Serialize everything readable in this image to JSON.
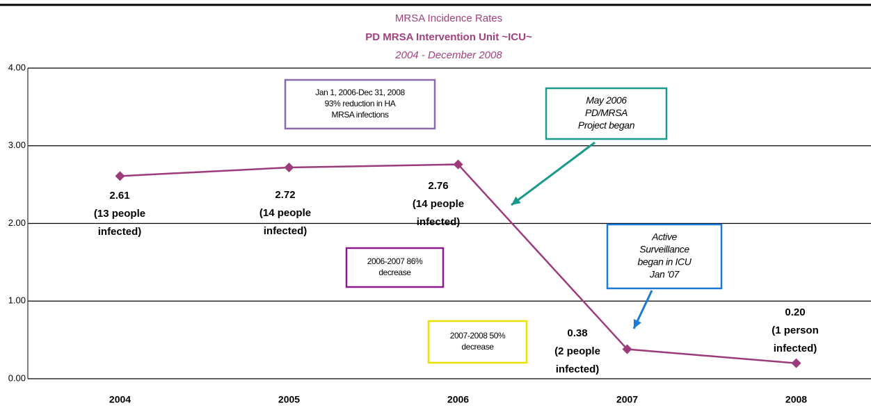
{
  "chart_data": {
    "type": "line",
    "title": "MRSA Incidence Rates",
    "subtitle": "PD MRSA Intervention Unit ~ICU~",
    "period": "2004 - December 2008",
    "categories": [
      "2004",
      "2005",
      "2006",
      "2007",
      "2008"
    ],
    "series": [
      {
        "name": "MRSA incidence rate",
        "color": "#9b3b7a",
        "values": [
          2.61,
          2.72,
          2.76,
          0.38,
          0.2
        ],
        "value_labels": [
          "2.61",
          "2.72",
          "2.76",
          "0.38",
          "0.20"
        ]
      }
    ],
    "point_notes": [
      [
        "(13 people",
        "infected)"
      ],
      [
        "(14 people",
        "infected)"
      ],
      [
        "(14 people",
        "infected)"
      ],
      [
        "(2 people",
        "infected)"
      ],
      [
        "(1 person",
        "infected)"
      ]
    ],
    "ylim": [
      0,
      4
    ],
    "yticks": [
      {
        "value": 0,
        "label": "0.00"
      },
      {
        "value": 1,
        "label": "1.00"
      },
      {
        "value": 2,
        "label": "2.00"
      },
      {
        "value": 3,
        "label": "3.00"
      },
      {
        "value": 4,
        "label": "4.00"
      }
    ],
    "grid": true,
    "annotations": [
      {
        "lines": [
          "Jan 1, 2006-Dec 31, 2008",
          "93% reduction in HA",
          "MRSA infections"
        ],
        "color": "#8a6aa8"
      },
      {
        "lines": [
          "May 2006",
          "PD/MRSA",
          "Project began"
        ],
        "color": "#1a9a8a"
      },
      {
        "lines": [
          "2006-2007 86%",
          "decrease"
        ],
        "color": "#8a1a8a"
      },
      {
        "lines": [
          "Active",
          "Surveillance",
          "began in ICU",
          "Jan '07"
        ],
        "color": "#1a7ad8"
      },
      {
        "lines": [
          "2007-2008 50%",
          "decrease"
        ],
        "color": "#f0e000"
      }
    ]
  }
}
